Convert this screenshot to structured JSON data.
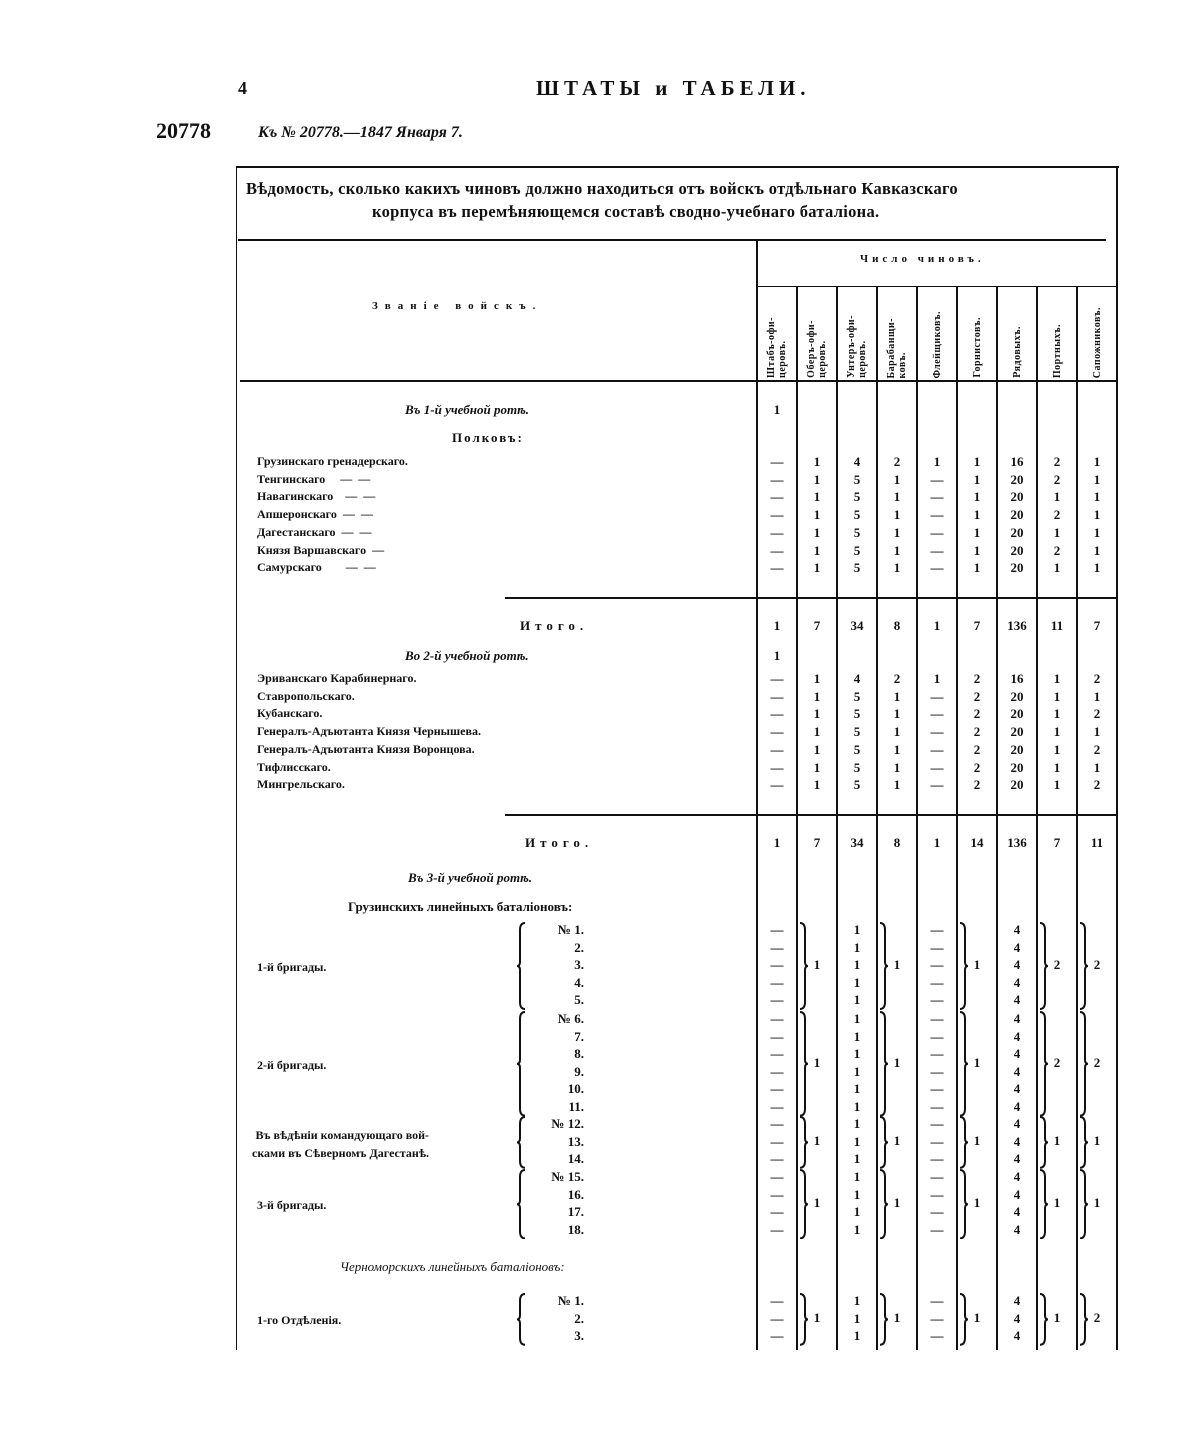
{
  "page": {
    "page_number": "4",
    "running_title": "ШТАТЫ и ТАБЕЛИ.",
    "law_number": "20778",
    "reference": "Къ № 20778.—1847 Января 7."
  },
  "table": {
    "title_line1": "Вѣдомость, сколько какихъ чиновъ должно находиться отъ войскъ отдѣльнаго Кавказскаго",
    "title_line2": "корпуса въ перемѣняющемся составѣ сводно-учебнаго баталіона.",
    "name_header": "Званіе войскъ.",
    "count_header": "Число чиновъ.",
    "columns": [
      "Штабъ-офи-\nцеровъ.",
      "Оберъ-офи-\nцеровъ.",
      "Унтеръ-офи-\nцеровъ.",
      "Барабанщи-\nковъ.",
      "Флейщиковъ.",
      "Горнистовъ.",
      "Рядовыхъ.",
      "Портныхъ.",
      "Сапожниковъ."
    ],
    "section1": {
      "heading": "Въ 1-й учебной ротѣ.",
      "heading_value": "1",
      "subheading": "Полковъ:",
      "rows": [
        {
          "name": "Грузинскаго гренадерскаго.",
          "values": [
            "—",
            "1",
            "4",
            "2",
            "1",
            "1",
            "16",
            "2",
            "1"
          ]
        },
        {
          "name": "Тенгинскаго     —  —",
          "values": [
            "—",
            "1",
            "5",
            "1",
            "—",
            "1",
            "20",
            "2",
            "1"
          ]
        },
        {
          "name": "Навагинскаго    —  —",
          "values": [
            "—",
            "1",
            "5",
            "1",
            "—",
            "1",
            "20",
            "1",
            "1"
          ]
        },
        {
          "name": "Апшеронскаго  —  —",
          "values": [
            "—",
            "1",
            "5",
            "1",
            "—",
            "1",
            "20",
            "2",
            "1"
          ]
        },
        {
          "name": "Дагестанскаго  —  —",
          "values": [
            "—",
            "1",
            "5",
            "1",
            "—",
            "1",
            "20",
            "1",
            "1"
          ]
        },
        {
          "name": "Князя Варшавскаго  —",
          "values": [
            "—",
            "1",
            "5",
            "1",
            "—",
            "1",
            "20",
            "2",
            "1"
          ]
        },
        {
          "name": "Самурскаго        —  —",
          "values": [
            "—",
            "1",
            "5",
            "1",
            "—",
            "1",
            "20",
            "1",
            "1"
          ]
        }
      ],
      "total": {
        "label": "Итого.",
        "values": [
          "1",
          "7",
          "34",
          "8",
          "1",
          "7",
          "136",
          "11",
          "7"
        ]
      }
    },
    "section2": {
      "heading": "Во 2-й учебной ротѣ.",
      "heading_value": "1",
      "rows": [
        {
          "name": "Эриванскаго Карабинернаго.",
          "values": [
            "—",
            "1",
            "4",
            "2",
            "1",
            "2",
            "16",
            "1",
            "2"
          ]
        },
        {
          "name": "Ставропольскаго.",
          "values": [
            "—",
            "1",
            "5",
            "1",
            "—",
            "2",
            "20",
            "1",
            "1"
          ]
        },
        {
          "name": "Кубанскаго.",
          "values": [
            "—",
            "1",
            "5",
            "1",
            "—",
            "2",
            "20",
            "1",
            "2"
          ]
        },
        {
          "name": "Генералъ-Адъютанта Князя Чернышева.",
          "values": [
            "—",
            "1",
            "5",
            "1",
            "—",
            "2",
            "20",
            "1",
            "1"
          ]
        },
        {
          "name": "Генералъ-Адъютанта Князя Воронцова.",
          "values": [
            "—",
            "1",
            "5",
            "1",
            "—",
            "2",
            "20",
            "1",
            "2"
          ]
        },
        {
          "name": "Тифлисскаго.",
          "values": [
            "—",
            "1",
            "5",
            "1",
            "—",
            "2",
            "20",
            "1",
            "1"
          ]
        },
        {
          "name": "Мингрельскаго.",
          "values": [
            "—",
            "1",
            "5",
            "1",
            "—",
            "2",
            "20",
            "1",
            "2"
          ]
        }
      ],
      "total": {
        "label": "Итого.",
        "values": [
          "1",
          "7",
          "34",
          "8",
          "1",
          "14",
          "136",
          "7",
          "11"
        ]
      }
    },
    "section3": {
      "heading": "Въ 3-й учебной ротѣ.",
      "subheading": "Грузинскихъ линейныхъ баталіоновъ:",
      "subheading2": "Черноморскихъ линейныхъ баталіоновъ:",
      "groups": [
        {
          "label": "1-й бригады.",
          "numbers": [
            "№  1.",
            "2.",
            "3.",
            "4.",
            "5."
          ],
          "row_values": [
            "—",
            "1",
            "—",
            "4"
          ],
          "grouped": [
            "1",
            "1",
            "1",
            "2",
            "2"
          ]
        },
        {
          "label": "2-й бригады.",
          "numbers": [
            "№  6.",
            "7.",
            "8.",
            "9.",
            "10.",
            "11."
          ],
          "row_values": [
            "—",
            "1",
            "—",
            "4"
          ],
          "grouped": [
            "1",
            "1",
            "1",
            "2",
            "2"
          ]
        },
        {
          "label": "Въ вѣдѣніи командующаго вой-\nсками въ Сѣверномъ Дагестанѣ.",
          "numbers": [
            "№ 12.",
            "13.",
            "14."
          ],
          "row_values": [
            "—",
            "1",
            "—",
            "4"
          ],
          "grouped": [
            "1",
            "1",
            "1",
            "1",
            "1"
          ]
        },
        {
          "label": "3-й бригады.",
          "numbers": [
            "№ 15.",
            "16.",
            "17.",
            "18."
          ],
          "row_values": [
            "—",
            "1",
            "—",
            "4"
          ],
          "grouped": [
            "1",
            "1",
            "1",
            "1",
            "1"
          ]
        },
        {
          "label": "1-го Отдѣленія.",
          "numbers": [
            "№  1.",
            "2.",
            "3."
          ],
          "row_values": [
            "—",
            "1",
            "—",
            "4"
          ],
          "grouped": [
            "1",
            "1",
            "1",
            "1",
            "2"
          ]
        }
      ]
    }
  }
}
